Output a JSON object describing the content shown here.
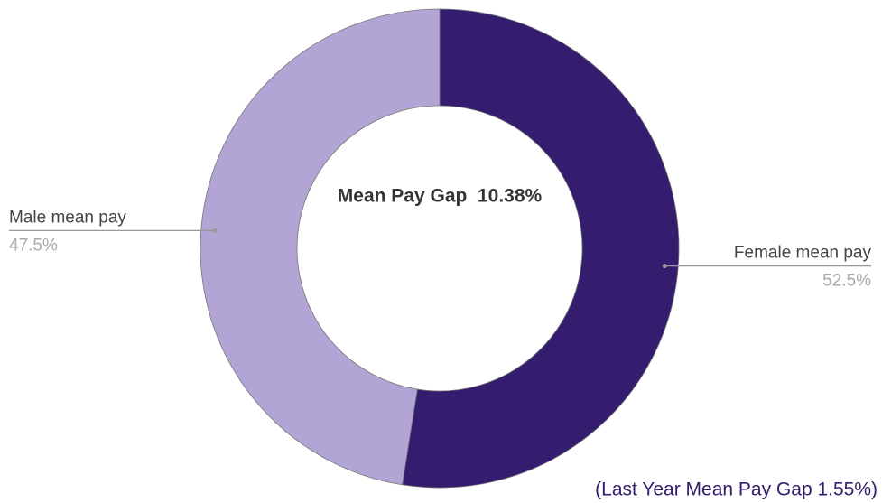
{
  "chart_data": {
    "type": "donut",
    "categories": [
      "Female mean pay",
      "Male mean pay"
    ],
    "values": [
      52.5,
      47.5
    ],
    "value_labels": [
      "52.5%",
      "47.5%"
    ],
    "colors": [
      "#341c6e",
      "#b2a5d5"
    ],
    "center_text": "Mean Pay Gap  10.38%",
    "annotation": "(Last Year Mean Pay Gap 1.55%)"
  }
}
